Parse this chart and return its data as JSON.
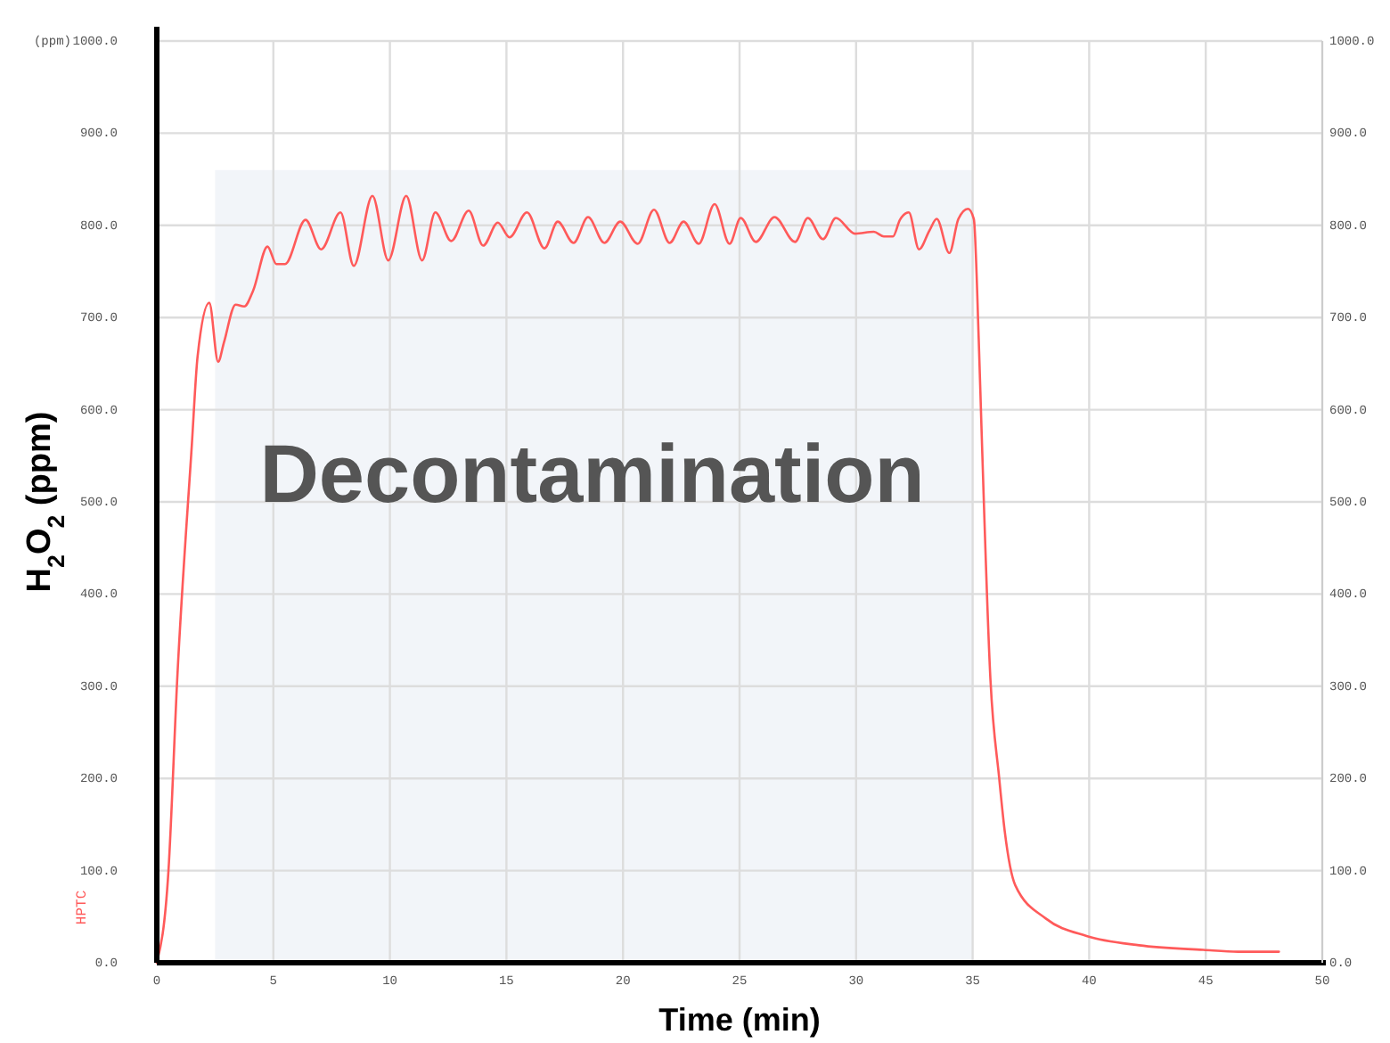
{
  "chart_data": {
    "type": "line",
    "xlabel": "Time (min)",
    "ylabel": "H$_{2}$O$_{2}$ (ppm)",
    "annotations": [
      "(ppm)"
    ],
    "xlim": [
      0,
      50
    ],
    "xticks": [
      0,
      5,
      10,
      15,
      20,
      25,
      30,
      35,
      40,
      45,
      50
    ],
    "ylim": [
      0,
      1000
    ],
    "yticks": [
      {
        "value": 0,
        "label": "0.0"
      },
      {
        "value": 100,
        "label": "100.0"
      },
      {
        "value": 200,
        "label": "200.0"
      },
      {
        "value": 300,
        "label": "300.0"
      },
      {
        "value": 400,
        "label": "400.0"
      },
      {
        "value": 500,
        "label": "500.0"
      },
      {
        "value": 600,
        "label": "600.0"
      },
      {
        "value": 700,
        "label": "700.0"
      },
      {
        "value": 800,
        "label": "800.0"
      },
      {
        "value": 900,
        "label": "900.0"
      },
      {
        "value": 1000,
        "label": "1000.0"
      }
    ],
    "y2lim": [
      0,
      1000
    ],
    "y2ticks": [
      {
        "value": 0,
        "label": "0.0"
      },
      {
        "value": 100,
        "label": "100.0"
      },
      {
        "value": 200,
        "label": "200.0"
      },
      {
        "value": 300,
        "label": "300.0"
      },
      {
        "value": 400,
        "label": "400.0"
      },
      {
        "value": 500,
        "label": "500.0"
      },
      {
        "value": 600,
        "label": "600.0"
      },
      {
        "value": 700,
        "label": "700.0"
      },
      {
        "value": 800,
        "label": "800.0"
      },
      {
        "value": 900,
        "label": "900.0"
      },
      {
        "value": 1000,
        "label": "1000.0"
      }
    ],
    "grid": true,
    "line_style": "solid",
    "marker": "none",
    "bands": [
      {
        "axis": "x",
        "from": 2.5,
        "to": 35,
        "label": "Decontamination",
        "color": "#f2f5f9"
      }
    ],
    "series": [
      {
        "name": "HPTC",
        "color": "#ff5a5a",
        "x": [
          0,
          0.5,
          0.88,
          1.5,
          1.75,
          2.25,
          2.63,
          2.88,
          3.38,
          3.75,
          4.13,
          4.75,
          5.13,
          5.5,
          6.38,
          7.05,
          7.88,
          8.45,
          9.25,
          9.93,
          10.7,
          11.38,
          11.95,
          12.63,
          13.38,
          14.0,
          14.63,
          15.13,
          15.88,
          16.63,
          17.2,
          17.88,
          18.5,
          19.2,
          19.88,
          20.63,
          21.33,
          22.0,
          22.6,
          23.25,
          23.93,
          24.57,
          25.05,
          25.7,
          26.5,
          27.38,
          27.93,
          28.58,
          29.13,
          29.96,
          30.76,
          31.19,
          31.58,
          31.88,
          32.26,
          32.7,
          33.14,
          33.46,
          34.0,
          34.39,
          34.8,
          35.05,
          35.26,
          35.38,
          35.76,
          36.14,
          36.38,
          36.83,
          38.14,
          39.89,
          42.14,
          44.89,
          46.39,
          48.14
        ],
        "values": [
          0,
          100,
          310,
          561,
          658,
          716,
          652,
          673,
          714,
          712,
          729,
          777,
          758,
          758,
          806,
          774,
          814,
          756,
          832,
          762,
          832,
          762,
          814,
          783,
          816,
          778,
          803,
          787,
          814,
          775,
          804,
          781,
          809,
          781,
          804,
          780,
          817,
          781,
          804,
          780,
          823,
          780,
          808,
          782,
          809,
          782,
          808,
          785,
          808,
          791,
          793,
          788,
          788,
          806,
          814,
          774,
          794,
          807,
          770,
          807,
          818,
          807,
          677,
          580,
          309,
          200,
          142,
          84,
          48,
          29,
          19,
          14,
          12,
          12
        ]
      }
    ]
  }
}
